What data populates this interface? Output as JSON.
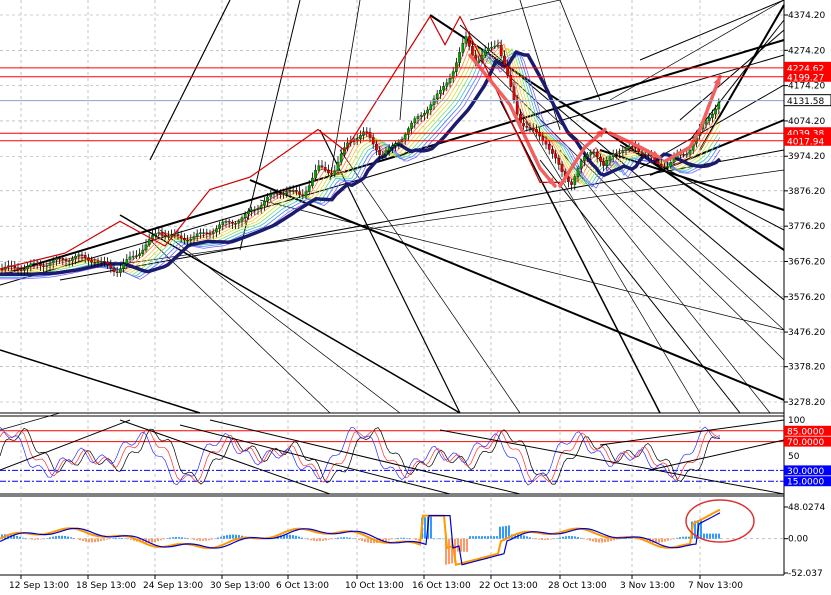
{
  "chart_data": [
    {
      "type": "candlestick",
      "panel": "main",
      "ylim": [
        3200,
        4400
      ],
      "yticks": [
        4374.2,
        4274.2,
        4174.2,
        4074.2,
        3974.2,
        3876.2,
        3776.2,
        3676.2,
        3576.2,
        3476.2,
        3378.2,
        3278.2
      ],
      "ytick_labels": [
        "4374.20",
        "4274.20",
        "4174.20",
        "4074.20",
        "3974.20",
        "3876.20",
        "3776.20",
        "3676.20",
        "3576.20",
        "3476.20",
        "3378.20",
        "3278.20"
      ],
      "xlabels": [
        "12 Sep 13:00",
        "18 Sep 13:00",
        "24 Sep 13:00",
        "30 Sep 13:00",
        "6 Oct 13:00",
        "10 Oct 13:00",
        "16 Oct 13:00",
        "22 Oct 13:00",
        "28 Oct 13:00",
        "3 Nov 13:00",
        "7 Nov 13:00"
      ],
      "close_path": [
        [
          0,
          3655
        ],
        [
          5,
          3660
        ],
        [
          10,
          3675
        ],
        [
          14,
          3690
        ],
        [
          18,
          3680
        ],
        [
          22,
          3650
        ],
        [
          26,
          3700
        ],
        [
          30,
          3760
        ],
        [
          34,
          3740
        ],
        [
          38,
          3750
        ],
        [
          42,
          3780
        ],
        [
          46,
          3800
        ],
        [
          50,
          3850
        ],
        [
          54,
          3880
        ],
        [
          57,
          3860
        ],
        [
          60,
          3940
        ],
        [
          63,
          3930
        ],
        [
          66,
          4020
        ],
        [
          69,
          4040
        ],
        [
          72,
          3980
        ],
        [
          74,
          3995
        ],
        [
          77,
          4050
        ],
        [
          80,
          4100
        ],
        [
          83,
          4150
        ],
        [
          86,
          4230
        ],
        [
          88,
          4310
        ],
        [
          90,
          4240
        ],
        [
          92,
          4270
        ],
        [
          94,
          4300
        ],
        [
          96,
          4190
        ],
        [
          98,
          4080
        ],
        [
          100,
          4050
        ],
        [
          103,
          4020
        ],
        [
          106,
          3930
        ],
        [
          108,
          3900
        ],
        [
          110,
          3960
        ],
        [
          112,
          4000
        ],
        [
          114,
          3940
        ],
        [
          116,
          3990
        ],
        [
          118,
          3990
        ],
        [
          120,
          4000
        ],
        [
          122,
          3980
        ],
        [
          124,
          3950
        ],
        [
          126,
          3950
        ],
        [
          128,
          3970
        ],
        [
          130,
          3990
        ],
        [
          132,
          4040
        ],
        [
          134,
          4090
        ],
        [
          136,
          4130
        ]
      ],
      "price_lines": [
        {
          "value": 4224.62,
          "label": "4224.62",
          "color": "#ff0000"
        },
        {
          "value": 4199.27,
          "label": "4199.27",
          "color": "#ff0000"
        },
        {
          "value": 4131.58,
          "label": "4131.58",
          "color": "#ffffff"
        },
        {
          "value": 4039.38,
          "label": "4039.38",
          "color": "#ff0000"
        },
        {
          "value": 4017.94,
          "label": "4017.94",
          "color": "#ff0000"
        }
      ]
    },
    {
      "type": "line",
      "panel": "stochastic",
      "ylim": [
        0,
        100
      ],
      "yticks": [
        100,
        50
      ],
      "ytick_labels": [
        "100",
        "50"
      ],
      "levels": [
        {
          "value": 85,
          "label": "85.0000",
          "color": "#ff0000"
        },
        {
          "value": 70,
          "label": "70.0000",
          "color": "#ff0000"
        },
        {
          "value": 30,
          "label": "30.0000",
          "color": "#0000ff"
        },
        {
          "value": 15,
          "label": "15.0000",
          "color": "#0000ff"
        }
      ]
    },
    {
      "type": "bar",
      "panel": "macd",
      "ylim": [
        -52.037,
        48.0274
      ],
      "yticks": [
        48.0274,
        0.0,
        -52.037
      ],
      "ytick_labels": [
        "48.0274",
        "0.00",
        "-52.037"
      ]
    }
  ],
  "colors": {
    "bull": "#00a000",
    "bear": "#e00000",
    "ma_thick": "#1a1a6e",
    "arrow": "#f06060",
    "hist_pos": "#3399ff",
    "hist_neg": "#ff9966"
  }
}
